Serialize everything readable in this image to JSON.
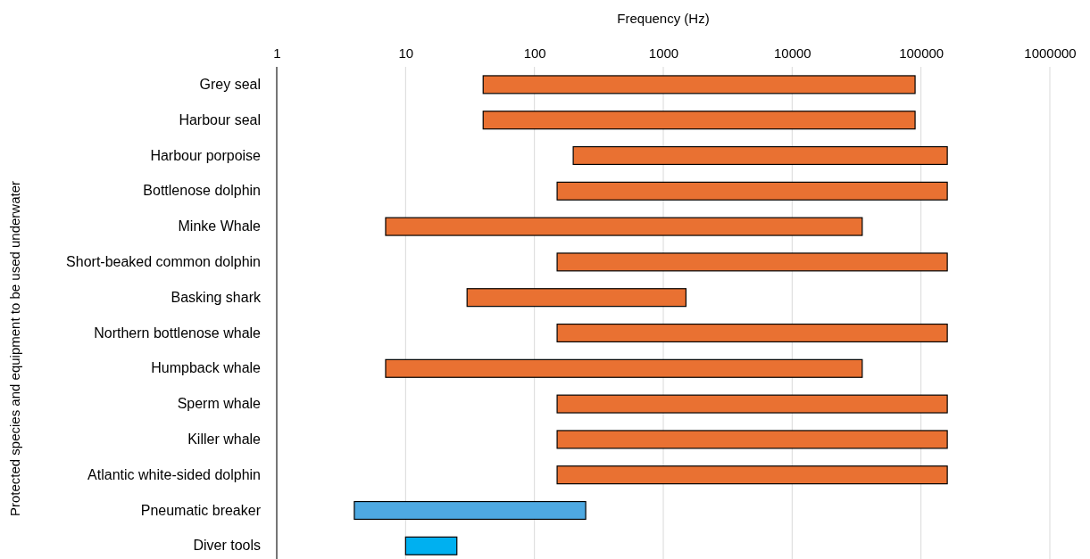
{
  "chart_data": {
    "type": "bar",
    "orientation": "horizontal",
    "log": "x",
    "xlabel": "Frequency (Hz)",
    "ylabel": "Protected species and equipment to be used underwater",
    "categories": [
      "Grey seal",
      "Harbour seal",
      "Harbour porpoise",
      "Bottlenose dolphin",
      "Minke Whale",
      "Short-beaked common dolphin",
      "Basking shark",
      "Northern bottlenose whale",
      "Humpback whale",
      "Sperm whale",
      "Killer whale",
      "Atlantic white-sided dolphin",
      "Pneumatic breaker",
      "Diver tools"
    ],
    "base": [
      40,
      40,
      200,
      150,
      7,
      150,
      30,
      150,
      7,
      150,
      150,
      150,
      4,
      10
    ],
    "values": [
      89960,
      89960,
      159800,
      159850,
      34993,
      159850,
      1470,
      159850,
      34993,
      159850,
      159850,
      159850,
      246,
      15
    ],
    "colors": [
      "#e97132",
      "#e97132",
      "#e97132",
      "#e97132",
      "#e97132",
      "#e97132",
      "#e97132",
      "#e97132",
      "#e97132",
      "#e97132",
      "#e97132",
      "#e97132",
      "#4ea9e2",
      "#00b0f0"
    ],
    "xlim": [
      1,
      1000000
    ],
    "xticks": [
      1,
      10,
      100,
      1000,
      10000,
      100000,
      1000000
    ],
    "grid": "x"
  }
}
